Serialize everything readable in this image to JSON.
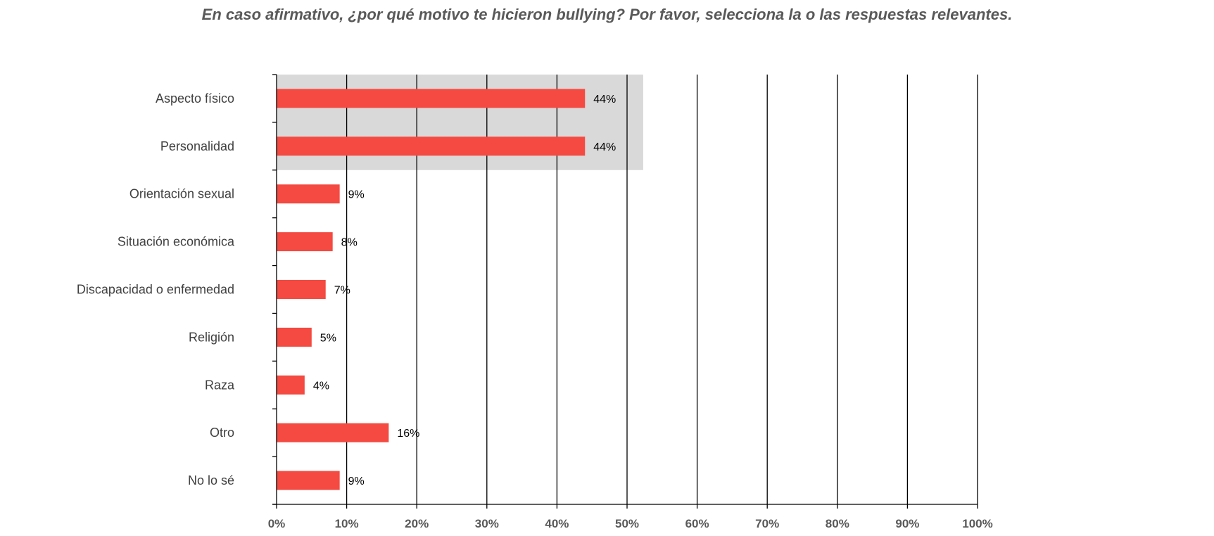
{
  "chart_data": {
    "type": "bar",
    "orientation": "horizontal",
    "title": "En caso afirmativo, ¿por qué motivo te hicieron bullying? Por favor, selecciona la o las respuestas relevantes.",
    "categories": [
      "Aspecto físico",
      "Personalidad",
      "Orientación sexual",
      "Situación económica",
      "Discapacidad o enfermedad",
      "Religión",
      "Raza",
      "Otro",
      "No lo sé"
    ],
    "values": [
      44,
      44,
      9,
      8,
      7,
      5,
      4,
      16,
      9
    ],
    "data_labels": [
      "44%",
      "44%",
      "9%",
      "8%",
      "7%",
      "5%",
      "4%",
      "16%",
      "9%"
    ],
    "xticks": [
      0,
      10,
      20,
      30,
      40,
      50,
      60,
      70,
      80,
      90,
      100
    ],
    "xtick_labels": [
      "0%",
      "10%",
      "20%",
      "30%",
      "40%",
      "50%",
      "60%",
      "70%",
      "80%",
      "90%",
      "100%"
    ],
    "xlim": [
      0,
      100
    ],
    "xlabel": "",
    "ylabel": "",
    "highlight": {
      "categories": [
        "Aspecto físico",
        "Personalidad"
      ],
      "to_value": 52.3,
      "color": "#d9d9d9"
    },
    "grid": true,
    "colors": {
      "bar": "#f44a41",
      "grid": "#000000",
      "axis": "#000000"
    }
  }
}
